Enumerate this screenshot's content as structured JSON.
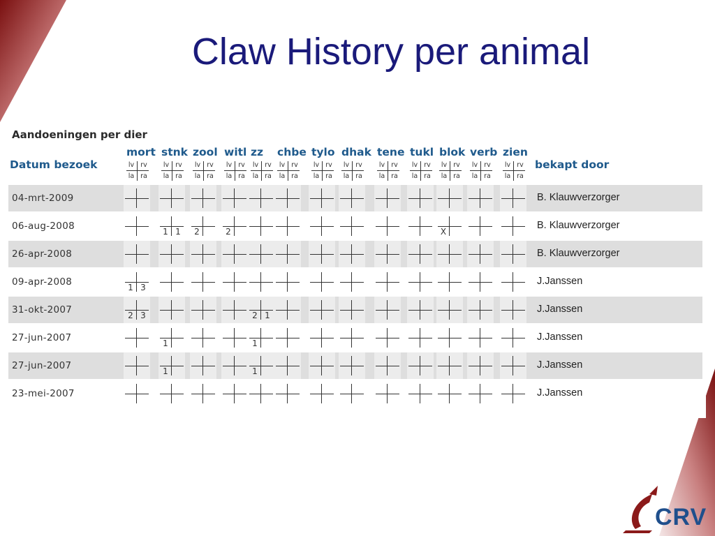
{
  "slide": {
    "title": "Claw History per animal",
    "accent_color": "#8b1a1a",
    "title_color": "#1a1a7a"
  },
  "table": {
    "heading": "Aandoeningen per dier",
    "date_header": "Datum bezoek",
    "by_header": "bekapt door",
    "claw_labels": {
      "lv": "lv",
      "rv": "rv",
      "la": "la",
      "ra": "ra"
    },
    "columns": [
      "mort",
      "stnk",
      "zool",
      "witl",
      "zz",
      "chbe",
      "tylo",
      "dhak",
      "tene",
      "tukl",
      "blok",
      "verb",
      "zien"
    ],
    "rows": [
      {
        "date": "04-mrt-2009",
        "by": "B. Klauwverzorger",
        "marks": {}
      },
      {
        "date": "06-aug-2008",
        "by": "B. Klauwverzorger",
        "marks": {
          "stnk": {
            "la": "1",
            "ra": "1"
          },
          "zool": {
            "la": "2"
          },
          "witl": {
            "la": "2"
          },
          "blok": {
            "la": "X"
          }
        }
      },
      {
        "date": "26-apr-2008",
        "by": "B. Klauwverzorger",
        "marks": {}
      },
      {
        "date": "09-apr-2008",
        "by": "J.Janssen",
        "marks": {
          "mort": {
            "la": "1",
            "ra": "3"
          }
        }
      },
      {
        "date": "31-okt-2007",
        "by": "J.Janssen",
        "marks": {
          "mort": {
            "la": "2",
            "ra": "3"
          },
          "zz": {
            "la": "2",
            "ra": "1"
          }
        }
      },
      {
        "date": "27-jun-2007",
        "by": "J.Janssen",
        "marks": {
          "stnk": {
            "la": "1"
          },
          "zz": {
            "la": "1"
          }
        }
      },
      {
        "date": "27-jun-2007",
        "by": "J.Janssen",
        "marks": {
          "stnk": {
            "la": "1"
          },
          "zz": {
            "la": "1"
          }
        }
      },
      {
        "date": "23-mei-2007",
        "by": "J.Janssen",
        "marks": {}
      }
    ]
  },
  "logo": {
    "text": "CRV",
    "icon": "crv-bull-logo-icon",
    "color": "#1f4f8c"
  }
}
